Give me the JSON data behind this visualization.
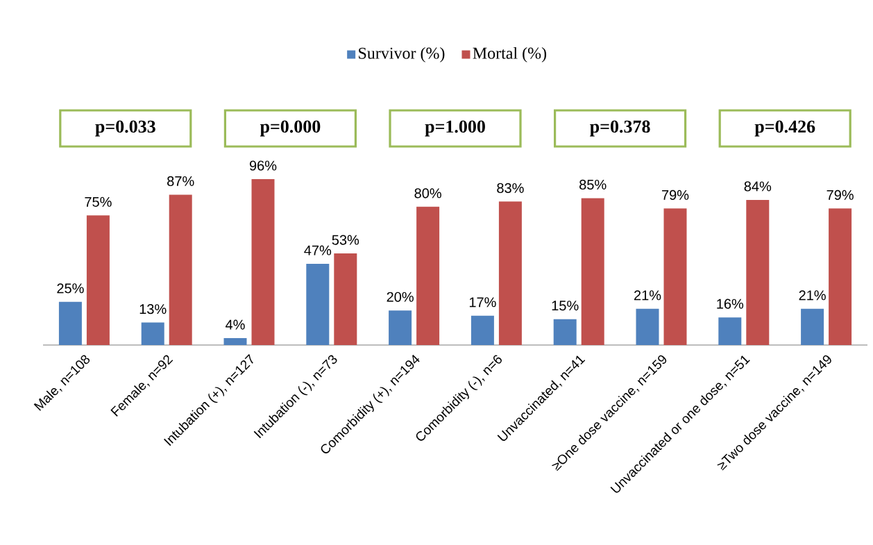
{
  "chart_data": {
    "type": "bar",
    "categories": [
      "Male, n=108",
      "Female, n=92",
      "Intubation (+), n=127",
      "Intubation (-), n=73",
      "Comorbidity (+), n=194",
      "Comorbidity (-), n=6",
      "Unvaccinated, n=41",
      "≥One dose vaccine, n=159",
      "Unvaccinated or one dose, n=51",
      "≥Two dose vaccine, n=149"
    ],
    "series": [
      {
        "name": "Survivor (%)",
        "color": "#4f81bd",
        "values": [
          25,
          13,
          4,
          47,
          20,
          17,
          15,
          21,
          16,
          21
        ],
        "value_labels": [
          "25%",
          "13%",
          "4%",
          "47%",
          "20%",
          "17%",
          "15%",
          "21%",
          "16%",
          "21%"
        ]
      },
      {
        "name": "Mortal  (%)",
        "color": "#c0504d",
        "values": [
          75,
          87,
          96,
          53,
          80,
          83,
          85,
          79,
          84,
          79
        ],
        "value_labels": [
          "75%",
          "87%",
          "96%",
          "53%",
          "80%",
          "83%",
          "85%",
          "79%",
          "84%",
          "79%"
        ]
      }
    ],
    "annotations": [
      "p=0.033",
      "p=0.000",
      "p=1.000",
      "p=0.378",
      "p=0.426"
    ],
    "legend": "top"
  }
}
